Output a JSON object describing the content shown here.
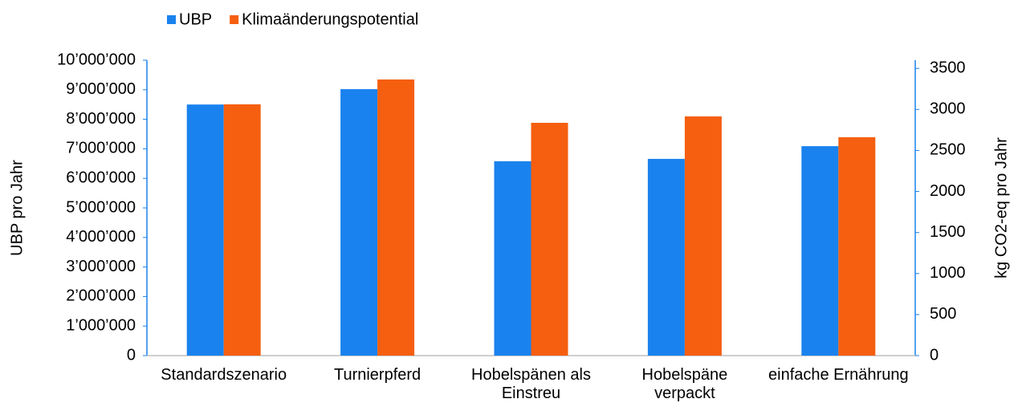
{
  "chart_data": {
    "type": "bar",
    "categories": [
      "Standardszenario",
      "Turnierpferd",
      "Hobelspänen als Einstreu",
      "Hobelspäne verpackt",
      "einfache Ernährung"
    ],
    "series": [
      {
        "name": "UBP",
        "color": "#1a82ee",
        "values": [
          8500000,
          9020000,
          6580000,
          6660000,
          7090000
        ]
      },
      {
        "name": "Klimaänderungspotential",
        "color": "#f55f0f",
        "axis": "y2",
        "values": [
          3062,
          3365,
          2837,
          2915,
          2661
        ]
      }
    ],
    "ylabel": "UBP pro Jahr",
    "y2label": "kg CO2-eq pro Jahr",
    "ylim": [
      0,
      10000000
    ],
    "yticks": [
      0,
      {
        "value": 1000000,
        "label": "1’000’000"
      },
      {
        "value": 2000000,
        "label": "2’000’000"
      },
      {
        "value": 3000000,
        "label": "3’000’000"
      },
      {
        "value": 4000000,
        "label": "4’000’000"
      },
      {
        "value": 5000000,
        "label": "5’000’000"
      },
      {
        "value": 6000000,
        "label": "6’000’000"
      },
      {
        "value": 7000000,
        "label": "7’000’000"
      },
      {
        "value": 8000000,
        "label": "8’000’000"
      },
      {
        "value": 9000000,
        "label": "9’000’000"
      },
      {
        "value": 10000000,
        "label": "10’000’000"
      }
    ],
    "y2lim": [
      0,
      3600
    ],
    "y2ticks": [
      0,
      500,
      1000,
      1500,
      2000,
      2500,
      3000,
      3500
    ],
    "legend": "top-left"
  }
}
